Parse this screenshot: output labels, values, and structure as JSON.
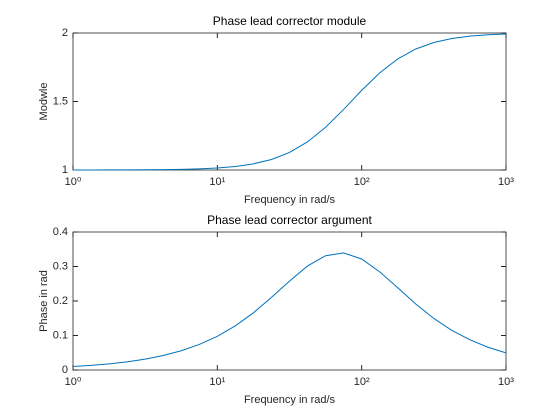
{
  "chart_data": [
    {
      "type": "line",
      "title": "Phase lead corrector module",
      "xlabel": "Frequency in rad/s",
      "ylabel": "Modwle",
      "xscale": "log",
      "xlim": [
        1,
        1000
      ],
      "xticks": [
        {
          "value": 1,
          "label": "10⁰"
        },
        {
          "value": 10,
          "label": "10¹"
        },
        {
          "value": 100,
          "label": "10²"
        },
        {
          "value": 1000,
          "label": "10³"
        }
      ],
      "ylim": [
        1,
        2
      ],
      "yticks": [
        1,
        {
          "value": 1.5,
          "label": "1.5"
        },
        2
      ],
      "x": [
        1,
        1.3335,
        1.7783,
        2.3714,
        3.1623,
        4.217,
        5.6234,
        7.499,
        10,
        13.335,
        17.783,
        23.714,
        31.623,
        42.17,
        56.234,
        74.99,
        100,
        133.35,
        177.83,
        237.14,
        316.23,
        421.7,
        562.34,
        749.9,
        1000
      ],
      "series": [
        {
          "color": "#0072bd",
          "values": [
            1.0001,
            1.0003,
            1.0005,
            1.0008,
            1.0015,
            1.0027,
            1.0047,
            1.0084,
            1.0147,
            1.0259,
            1.045,
            1.0769,
            1.1282,
            1.2054,
            1.3118,
            1.4422,
            1.5811,
            1.7089,
            1.8109,
            1.8834,
            1.9306,
            1.9597,
            1.9769,
            1.9869,
            1.9926
          ]
        }
      ]
    },
    {
      "type": "line",
      "title": "Phase lead corrector argument",
      "xlabel": "Frequency in rad/s",
      "ylabel": "Phase in rad",
      "xscale": "log",
      "xlim": [
        1,
        1000
      ],
      "xticks": [
        {
          "value": 1,
          "label": "10⁰"
        },
        {
          "value": 10,
          "label": "10¹"
        },
        {
          "value": 100,
          "label": "10²"
        },
        {
          "value": 1000,
          "label": "10³"
        }
      ],
      "ylim": [
        0,
        0.4
      ],
      "yticks": [
        0,
        0.1,
        0.2,
        0.3,
        0.4
      ],
      "x": [
        1,
        1.3335,
        1.7783,
        2.3714,
        3.1623,
        4.217,
        5.6234,
        7.499,
        10,
        13.335,
        17.783,
        23.714,
        31.623,
        42.17,
        56.234,
        74.99,
        100,
        133.35,
        177.83,
        237.14,
        316.23,
        421.7,
        562.34,
        749.9,
        1000
      ],
      "series": [
        {
          "color": "#0072bd",
          "values": [
            0.01,
            0.0133,
            0.0178,
            0.0237,
            0.0316,
            0.042,
            0.0558,
            0.074,
            0.0977,
            0.1281,
            0.1658,
            0.2105,
            0.2577,
            0.3016,
            0.3312,
            0.3393,
            0.3218,
            0.2845,
            0.2385,
            0.1913,
            0.1494,
            0.1147,
            0.0874,
            0.066,
            0.0497
          ]
        }
      ]
    }
  ]
}
